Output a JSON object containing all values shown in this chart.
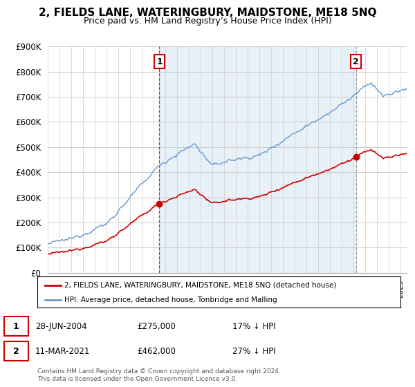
{
  "title": "2, FIELDS LANE, WATERINGBURY, MAIDSTONE, ME18 5NQ",
  "subtitle": "Price paid vs. HM Land Registry’s House Price Index (HPI)",
  "ylim": [
    0,
    900000
  ],
  "yticks": [
    0,
    100000,
    200000,
    300000,
    400000,
    500000,
    600000,
    700000,
    800000,
    900000
  ],
  "ytick_labels": [
    "£0",
    "£100K",
    "£200K",
    "£300K",
    "£400K",
    "£500K",
    "£600K",
    "£700K",
    "£800K",
    "£900K"
  ],
  "transaction1_date": 2004.49,
  "transaction1_price": 275000,
  "transaction1_display": "28-JUN-2004",
  "transaction1_amount": "£275,000",
  "transaction1_hpi": "17% ↓ HPI",
  "transaction2_date": 2021.19,
  "transaction2_price": 462000,
  "transaction2_display": "11-MAR-2021",
  "transaction2_amount": "£462,000",
  "transaction2_hpi": "27% ↓ HPI",
  "line_property_color": "#cc0000",
  "line_hpi_color": "#6699cc",
  "shade_color": "#e8f0f8",
  "legend_property": "2, FIELDS LANE, WATERINGBURY, MAIDSTONE, ME18 5NQ (detached house)",
  "legend_hpi": "HPI: Average price, detached house, Tonbridge and Malling",
  "footer": "Contains HM Land Registry data © Crown copyright and database right 2024.\nThis data is licensed under the Open Government Licence v3.0.",
  "background_color": "#ffffff",
  "grid_color": "#cccccc"
}
